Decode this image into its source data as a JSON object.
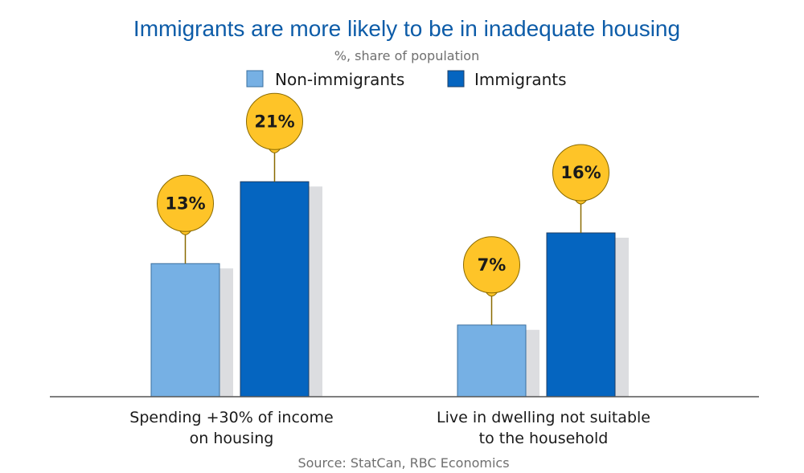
{
  "chart_data": {
    "type": "bar",
    "title": "Immigrants are more likely to be in inadequate housing",
    "subtitle": "%, share of population",
    "categories": [
      [
        "Spending +30% of income",
        "on housing"
      ],
      [
        "Live in dwelling not suitable",
        "to the household"
      ]
    ],
    "series": [
      {
        "name": "Non-immigrants",
        "values": [
          13,
          7
        ],
        "labels": [
          "13%",
          "7%"
        ],
        "color": "#76b0e4"
      },
      {
        "name": "Immigrants",
        "values": [
          21,
          16
        ],
        "labels": [
          "21%",
          "16%"
        ],
        "color": "#0565c0"
      }
    ],
    "ylim": [
      0,
      30
    ],
    "legend_position": "top-center",
    "grid": false,
    "bubble_color": "#fec428",
    "shadow_color": "#dcdde0",
    "source": "Source: StatCan, RBC Economics"
  }
}
